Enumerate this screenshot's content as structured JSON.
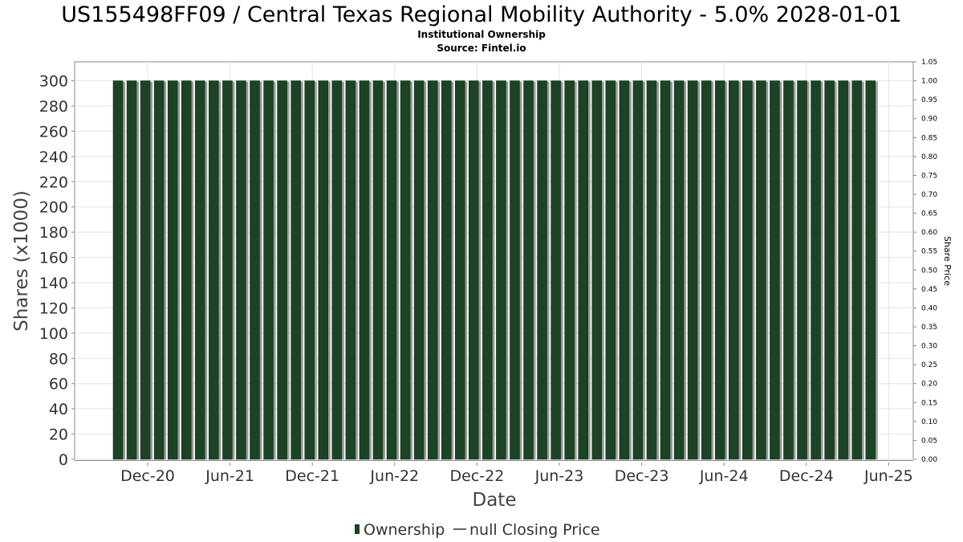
{
  "chart_data": {
    "type": "bar",
    "title": "US155498FF09 / Central Texas Regional Mobility Authority - 5.0% 2028-01-01",
    "subtitle_lines": [
      "Institutional Ownership",
      "Source: Fintel.io"
    ],
    "xlabel": "Date",
    "ylabel": "Shares (x1000)",
    "y2label": "Share Price",
    "ylim": [
      0,
      315
    ],
    "y2lim": [
      0,
      1.05
    ],
    "yticks": [
      "0",
      "20",
      "40",
      "60",
      "80",
      "100",
      "120",
      "140",
      "160",
      "180",
      "200",
      "220",
      "240",
      "260",
      "280",
      "300"
    ],
    "y2ticks": [
      "0.00",
      "0.05",
      "0.10",
      "0.15",
      "0.20",
      "0.25",
      "0.30",
      "0.35",
      "0.40",
      "0.45",
      "0.50",
      "0.55",
      "0.60",
      "0.65",
      "0.70",
      "0.75",
      "0.80",
      "0.85",
      "0.90",
      "0.95",
      "1.00",
      "1.05"
    ],
    "xticks": [
      "Dec-20",
      "Jun-21",
      "Dec-21",
      "Jun-22",
      "Dec-22",
      "Jun-23",
      "Dec-23",
      "Jun-24",
      "Dec-24",
      "Jun-25"
    ],
    "series": [
      {
        "name": "Ownership",
        "color": "#1a4424",
        "values": [
          300,
          300,
          300,
          300,
          300,
          300,
          300,
          300,
          300,
          300,
          300,
          300,
          300,
          300,
          300,
          300,
          300,
          300,
          300,
          300,
          300,
          300,
          300,
          300,
          300,
          300,
          300,
          300,
          300,
          300,
          300,
          300,
          300,
          300,
          300,
          300,
          300,
          300,
          300,
          300,
          300,
          300,
          300,
          300,
          300,
          300,
          300,
          300,
          300,
          300,
          300,
          300,
          300,
          300,
          300,
          300
        ]
      }
    ],
    "legend": {
      "placement": "bottom",
      "items": [
        {
          "label": "Ownership",
          "marker": "bar",
          "color": "#1a4424"
        },
        {
          "label": "null Closing Price",
          "marker": "line",
          "color": "#666666"
        }
      ]
    },
    "grid": true
  }
}
